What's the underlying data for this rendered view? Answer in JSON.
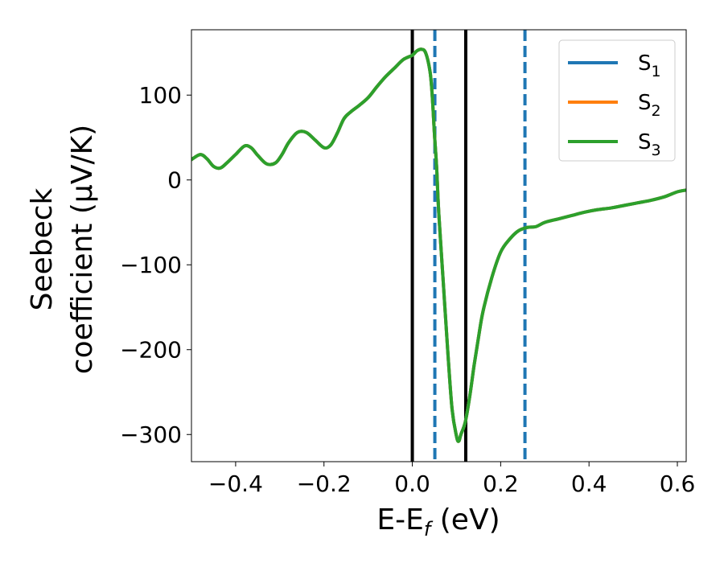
{
  "chart_data": {
    "type": "line",
    "title": "",
    "xlabel": {
      "main": "E-E",
      "sub": "f",
      "unit": " (eV)"
    },
    "ylabel": {
      "line1": "Seebeck",
      "line2": "coefficient  (μV/K)"
    },
    "xlim": [
      -0.5,
      0.62
    ],
    "ylim": [
      -332,
      177
    ],
    "xticks": [
      -0.4,
      -0.2,
      0.0,
      0.2,
      0.4,
      0.6
    ],
    "xtick_labels": [
      "−0.4",
      "−0.2",
      "0.0",
      "0.2",
      "0.4",
      "0.6"
    ],
    "yticks": [
      100,
      0,
      -100,
      -200,
      -300
    ],
    "ytick_labels": [
      "100",
      "0",
      "−100",
      "−200",
      "−300"
    ],
    "grid": false,
    "legend_position": "top-right",
    "series": [
      {
        "name": "S",
        "sub": "1",
        "color": "#1f77b4",
        "x": [
          -0.5,
          -0.48,
          -0.465,
          -0.45,
          -0.435,
          -0.42,
          -0.4,
          -0.38,
          -0.365,
          -0.35,
          -0.33,
          -0.31,
          -0.295,
          -0.28,
          -0.26,
          -0.24,
          -0.22,
          -0.2,
          -0.185,
          -0.17,
          -0.155,
          -0.14,
          -0.12,
          -0.1,
          -0.08,
          -0.06,
          -0.04,
          -0.02,
          0.0,
          0.01,
          0.02,
          0.03,
          0.04,
          0.045,
          0.05,
          0.055,
          0.06,
          0.07,
          0.08,
          0.09,
          0.1,
          0.105,
          0.11,
          0.12,
          0.13,
          0.14,
          0.15,
          0.16,
          0.18,
          0.2,
          0.22,
          0.24,
          0.26,
          0.28,
          0.3,
          0.33,
          0.36,
          0.39,
          0.42,
          0.45,
          0.48,
          0.51,
          0.54,
          0.57,
          0.6,
          0.62
        ],
        "y": [
          24,
          30,
          25,
          16,
          14,
          20,
          30,
          40,
          38,
          29,
          19,
          20,
          30,
          44,
          56,
          56,
          47,
          38,
          41,
          55,
          72,
          80,
          88,
          97,
          110,
          122,
          132,
          142,
          147,
          152,
          154,
          150,
          128,
          100,
          55,
          15,
          -40,
          -120,
          -200,
          -270,
          -302,
          -308,
          -300,
          -285,
          -255,
          -218,
          -185,
          -155,
          -115,
          -85,
          -70,
          -60,
          -56,
          -55,
          -50,
          -46,
          -42,
          -38,
          -35,
          -33,
          -30,
          -27,
          -24,
          -20,
          -14,
          -12
        ]
      },
      {
        "name": "S",
        "sub": "2",
        "color": "#ff7f0e",
        "x": [
          -0.5,
          -0.48,
          -0.465,
          -0.45,
          -0.435,
          -0.42,
          -0.4,
          -0.38,
          -0.365,
          -0.35,
          -0.33,
          -0.31,
          -0.295,
          -0.28,
          -0.26,
          -0.24,
          -0.22,
          -0.2,
          -0.185,
          -0.17,
          -0.155,
          -0.14,
          -0.12,
          -0.1,
          -0.08,
          -0.06,
          -0.04,
          -0.02,
          0.0,
          0.01,
          0.02,
          0.03,
          0.04,
          0.045,
          0.05,
          0.055,
          0.06,
          0.07,
          0.08,
          0.09,
          0.1,
          0.105,
          0.11,
          0.12,
          0.13,
          0.14,
          0.15,
          0.16,
          0.18,
          0.2,
          0.22,
          0.24,
          0.26,
          0.28,
          0.3,
          0.33,
          0.36,
          0.39,
          0.42,
          0.45,
          0.48,
          0.51,
          0.54,
          0.57,
          0.6,
          0.62
        ],
        "y": [
          24,
          30,
          25,
          16,
          14,
          20,
          30,
          40,
          38,
          29,
          19,
          20,
          30,
          44,
          56,
          56,
          47,
          38,
          41,
          55,
          72,
          80,
          88,
          97,
          110,
          122,
          132,
          142,
          147,
          152,
          154,
          150,
          128,
          100,
          55,
          15,
          -40,
          -120,
          -200,
          -270,
          -302,
          -308,
          -300,
          -285,
          -255,
          -218,
          -185,
          -155,
          -115,
          -85,
          -70,
          -60,
          -56,
          -55,
          -50,
          -46,
          -42,
          -38,
          -35,
          -33,
          -30,
          -27,
          -24,
          -20,
          -14,
          -12
        ]
      },
      {
        "name": "S",
        "sub": "3",
        "color": "#2ca02c",
        "x": [
          -0.5,
          -0.48,
          -0.465,
          -0.45,
          -0.435,
          -0.42,
          -0.4,
          -0.38,
          -0.365,
          -0.35,
          -0.33,
          -0.31,
          -0.295,
          -0.28,
          -0.26,
          -0.24,
          -0.22,
          -0.2,
          -0.185,
          -0.17,
          -0.155,
          -0.14,
          -0.12,
          -0.1,
          -0.08,
          -0.06,
          -0.04,
          -0.02,
          0.0,
          0.01,
          0.02,
          0.03,
          0.04,
          0.045,
          0.05,
          0.055,
          0.06,
          0.07,
          0.08,
          0.09,
          0.1,
          0.105,
          0.11,
          0.12,
          0.13,
          0.14,
          0.15,
          0.16,
          0.18,
          0.2,
          0.22,
          0.24,
          0.26,
          0.28,
          0.3,
          0.33,
          0.36,
          0.39,
          0.42,
          0.45,
          0.48,
          0.51,
          0.54,
          0.57,
          0.6,
          0.62
        ],
        "y": [
          24,
          30,
          25,
          16,
          14,
          20,
          30,
          40,
          38,
          29,
          19,
          20,
          30,
          44,
          56,
          56,
          47,
          38,
          41,
          55,
          72,
          80,
          88,
          97,
          110,
          122,
          132,
          142,
          147,
          152,
          154,
          150,
          128,
          100,
          55,
          15,
          -40,
          -120,
          -200,
          -270,
          -302,
          -308,
          -300,
          -285,
          -255,
          -218,
          -185,
          -155,
          -115,
          -85,
          -70,
          -60,
          -56,
          -55,
          -50,
          -46,
          -42,
          -38,
          -35,
          -33,
          -30,
          -27,
          -24,
          -20,
          -14,
          -12
        ]
      }
    ],
    "vlines": [
      {
        "x": 0.0,
        "style": "solid",
        "color": "#000000"
      },
      {
        "x": 0.121,
        "style": "solid",
        "color": "#000000"
      },
      {
        "x": 0.051,
        "style": "dashed",
        "color": "#1f77b4"
      },
      {
        "x": 0.255,
        "style": "dashed",
        "color": "#1f77b4"
      }
    ]
  }
}
